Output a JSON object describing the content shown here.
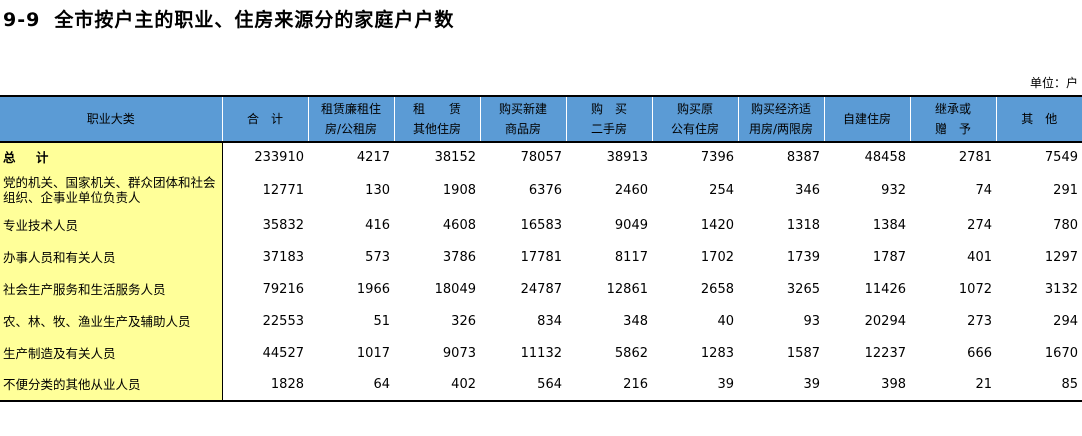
{
  "title": {
    "number": "9-9",
    "text": "全市按户主的职业、住房来源分的家庭户户数"
  },
  "unit": "单位：户",
  "headers": [
    [
      "职业大类"
    ],
    [
      "合　计"
    ],
    [
      "租赁廉租住",
      "房/公租房"
    ],
    [
      "租　　赁",
      "其他住房"
    ],
    [
      "购买新建",
      "商品房"
    ],
    [
      "购　买",
      "二手房"
    ],
    [
      "购买原",
      "公有住房"
    ],
    [
      "购买经济适",
      "用房/两限房"
    ],
    [
      "自建住房"
    ],
    [
      "继承或",
      "赠　予"
    ],
    [
      "其　他"
    ]
  ],
  "rows": [
    {
      "label": "总 计",
      "values": [
        "233910",
        "4217",
        "38152",
        "78057",
        "38913",
        "7396",
        "8387",
        "48458",
        "2781",
        "7549"
      ]
    },
    {
      "label": "党的机关、国家机关、群众团体和社会组织、企事业单位负责人",
      "values": [
        "12771",
        "130",
        "1908",
        "6376",
        "2460",
        "254",
        "346",
        "932",
        "74",
        "291"
      ]
    },
    {
      "label": "专业技术人员",
      "values": [
        "35832",
        "416",
        "4608",
        "16583",
        "9049",
        "1420",
        "1318",
        "1384",
        "274",
        "780"
      ]
    },
    {
      "label": "办事人员和有关人员",
      "values": [
        "37183",
        "573",
        "3786",
        "17781",
        "8117",
        "1702",
        "1739",
        "1787",
        "401",
        "1297"
      ]
    },
    {
      "label": "社会生产服务和生活服务人员",
      "values": [
        "79216",
        "1966",
        "18049",
        "24787",
        "12861",
        "2658",
        "3265",
        "11426",
        "1072",
        "3132"
      ]
    },
    {
      "label": "农、林、牧、渔业生产及辅助人员",
      "values": [
        "22553",
        "51",
        "326",
        "834",
        "348",
        "40",
        "93",
        "20294",
        "273",
        "294"
      ]
    },
    {
      "label": "生产制造及有关人员",
      "values": [
        "44527",
        "1017",
        "9073",
        "11132",
        "5862",
        "1283",
        "1587",
        "12237",
        "666",
        "1670"
      ]
    },
    {
      "label": "不便分类的其他从业人员",
      "values": [
        "1828",
        "64",
        "402",
        "564",
        "216",
        "39",
        "39",
        "398",
        "21",
        "85"
      ]
    }
  ]
}
